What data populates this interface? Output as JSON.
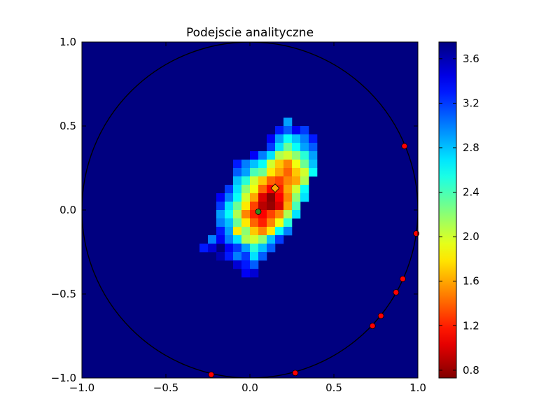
{
  "chart_data": {
    "type": "heatmap",
    "title": "Podejscie analityczne",
    "xlabel": "",
    "ylabel": "",
    "xlim": [
      -1.0,
      1.0
    ],
    "ylim": [
      -1.0,
      1.0
    ],
    "x_ticks": [
      "−1.0",
      "−0.5",
      "0.0",
      "0.5",
      "1.0"
    ],
    "x_tick_values": [
      -1.0,
      -0.5,
      0.0,
      0.5,
      1.0
    ],
    "y_ticks": [
      "−1.0",
      "−0.5",
      "0.0",
      "0.5",
      "1.0"
    ],
    "y_tick_values": [
      -1.0,
      -0.5,
      0.0,
      0.5,
      1.0
    ],
    "colorbar": {
      "colormap": "jet_r",
      "range": [
        0.73,
        3.75
      ],
      "ticks": [
        "0.8",
        "1.2",
        "1.6",
        "2.0",
        "2.4",
        "2.8",
        "3.2",
        "3.6"
      ],
      "tick_values": [
        0.8,
        1.2,
        1.6,
        2.0,
        2.4,
        2.8,
        3.2,
        3.6
      ]
    },
    "background_value": 3.75,
    "grid": {
      "bins": 40,
      "cell_size": 0.05,
      "cells": [
        {
          "x": 0.225,
          "y": 0.525,
          "v": 2.9
        },
        {
          "x": 0.175,
          "y": 0.475,
          "v": 3.3
        },
        {
          "x": 0.225,
          "y": 0.475,
          "v": 3.1
        },
        {
          "x": 0.275,
          "y": 0.475,
          "v": 3.4
        },
        {
          "x": 0.325,
          "y": 0.475,
          "v": 3.2
        },
        {
          "x": 0.125,
          "y": 0.425,
          "v": 3.4
        },
        {
          "x": 0.175,
          "y": 0.425,
          "v": 2.9
        },
        {
          "x": 0.225,
          "y": 0.425,
          "v": 2.6
        },
        {
          "x": 0.275,
          "y": 0.425,
          "v": 2.8
        },
        {
          "x": 0.325,
          "y": 0.425,
          "v": 3.0
        },
        {
          "x": 0.375,
          "y": 0.425,
          "v": 3.3
        },
        {
          "x": 0.125,
          "y": 0.375,
          "v": 3.2
        },
        {
          "x": 0.175,
          "y": 0.375,
          "v": 2.7
        },
        {
          "x": 0.225,
          "y": 0.375,
          "v": 2.3
        },
        {
          "x": 0.275,
          "y": 0.375,
          "v": 2.6
        },
        {
          "x": 0.325,
          "y": 0.375,
          "v": 2.9
        },
        {
          "x": 0.375,
          "y": 0.375,
          "v": 3.1
        },
        {
          "x": 0.025,
          "y": 0.325,
          "v": 3.4
        },
        {
          "x": 0.075,
          "y": 0.325,
          "v": 3.0
        },
        {
          "x": 0.125,
          "y": 0.325,
          "v": 2.7
        },
        {
          "x": 0.175,
          "y": 0.325,
          "v": 2.1
        },
        {
          "x": 0.225,
          "y": 0.325,
          "v": 2.0
        },
        {
          "x": 0.275,
          "y": 0.325,
          "v": 2.2
        },
        {
          "x": 0.325,
          "y": 0.325,
          "v": 2.5
        },
        {
          "x": 0.375,
          "y": 0.325,
          "v": 2.9
        },
        {
          "x": -0.075,
          "y": 0.275,
          "v": 3.3
        },
        {
          "x": -0.025,
          "y": 0.275,
          "v": 3.0
        },
        {
          "x": 0.025,
          "y": 0.275,
          "v": 2.8
        },
        {
          "x": 0.075,
          "y": 0.275,
          "v": 2.6
        },
        {
          "x": 0.125,
          "y": 0.275,
          "v": 2.0
        },
        {
          "x": 0.175,
          "y": 0.275,
          "v": 1.7
        },
        {
          "x": 0.225,
          "y": 0.275,
          "v": 1.5
        },
        {
          "x": 0.275,
          "y": 0.275,
          "v": 1.9
        },
        {
          "x": 0.325,
          "y": 0.275,
          "v": 2.3
        },
        {
          "x": 0.375,
          "y": 0.275,
          "v": 2.8
        },
        {
          "x": -0.075,
          "y": 0.225,
          "v": 3.1
        },
        {
          "x": -0.025,
          "y": 0.225,
          "v": 2.9
        },
        {
          "x": 0.025,
          "y": 0.225,
          "v": 2.4
        },
        {
          "x": 0.075,
          "y": 0.225,
          "v": 2.3
        },
        {
          "x": 0.125,
          "y": 0.225,
          "v": 1.8
        },
        {
          "x": 0.175,
          "y": 0.225,
          "v": 1.6
        },
        {
          "x": 0.225,
          "y": 0.225,
          "v": 1.4
        },
        {
          "x": 0.275,
          "y": 0.225,
          "v": 1.7
        },
        {
          "x": 0.325,
          "y": 0.225,
          "v": 2.0
        },
        {
          "x": 0.375,
          "y": 0.225,
          "v": 2.6
        },
        {
          "x": -0.075,
          "y": 0.175,
          "v": 2.8
        },
        {
          "x": -0.025,
          "y": 0.175,
          "v": 2.5
        },
        {
          "x": 0.025,
          "y": 0.175,
          "v": 2.0
        },
        {
          "x": 0.075,
          "y": 0.175,
          "v": 1.7
        },
        {
          "x": 0.125,
          "y": 0.175,
          "v": 1.4
        },
        {
          "x": 0.175,
          "y": 0.175,
          "v": 1.3
        },
        {
          "x": 0.225,
          "y": 0.175,
          "v": 1.5
        },
        {
          "x": 0.275,
          "y": 0.175,
          "v": 1.6
        },
        {
          "x": 0.325,
          "y": 0.175,
          "v": 2.1
        },
        {
          "x": -0.125,
          "y": 0.125,
          "v": 3.2
        },
        {
          "x": -0.075,
          "y": 0.125,
          "v": 2.7
        },
        {
          "x": -0.025,
          "y": 0.125,
          "v": 2.2
        },
        {
          "x": 0.025,
          "y": 0.125,
          "v": 1.9
        },
        {
          "x": 0.075,
          "y": 0.125,
          "v": 1.4
        },
        {
          "x": 0.125,
          "y": 0.125,
          "v": 1.1
        },
        {
          "x": 0.175,
          "y": 0.125,
          "v": 1.2
        },
        {
          "x": 0.225,
          "y": 0.125,
          "v": 1.6
        },
        {
          "x": 0.275,
          "y": 0.125,
          "v": 2.0
        },
        {
          "x": 0.325,
          "y": 0.125,
          "v": 2.6
        },
        {
          "x": -0.175,
          "y": 0.075,
          "v": 3.4
        },
        {
          "x": -0.125,
          "y": 0.075,
          "v": 3.0
        },
        {
          "x": -0.075,
          "y": 0.075,
          "v": 2.6
        },
        {
          "x": -0.025,
          "y": 0.075,
          "v": 2.0
        },
        {
          "x": 0.025,
          "y": 0.075,
          "v": 1.6
        },
        {
          "x": 0.075,
          "y": 0.075,
          "v": 1.0
        },
        {
          "x": 0.125,
          "y": 0.075,
          "v": 0.76
        },
        {
          "x": 0.175,
          "y": 0.075,
          "v": 1.1
        },
        {
          "x": 0.225,
          "y": 0.075,
          "v": 1.5
        },
        {
          "x": 0.275,
          "y": 0.075,
          "v": 2.2
        },
        {
          "x": 0.325,
          "y": 0.075,
          "v": 2.7
        },
        {
          "x": -0.175,
          "y": 0.025,
          "v": 3.2
        },
        {
          "x": -0.125,
          "y": 0.025,
          "v": 2.7
        },
        {
          "x": -0.075,
          "y": 0.025,
          "v": 2.3
        },
        {
          "x": -0.025,
          "y": 0.025,
          "v": 1.8
        },
        {
          "x": 0.025,
          "y": 0.025,
          "v": 1.3
        },
        {
          "x": 0.075,
          "y": 0.025,
          "v": 0.9
        },
        {
          "x": 0.125,
          "y": 0.025,
          "v": 0.8
        },
        {
          "x": 0.175,
          "y": 0.025,
          "v": 1.0
        },
        {
          "x": 0.225,
          "y": 0.025,
          "v": 1.6
        },
        {
          "x": 0.275,
          "y": 0.025,
          "v": 2.4
        },
        {
          "x": -0.175,
          "y": -0.025,
          "v": 2.9
        },
        {
          "x": -0.125,
          "y": -0.025,
          "v": 2.6
        },
        {
          "x": -0.075,
          "y": -0.025,
          "v": 2.1
        },
        {
          "x": -0.025,
          "y": -0.025,
          "v": 1.5
        },
        {
          "x": 0.025,
          "y": -0.025,
          "v": 1.2
        },
        {
          "x": 0.075,
          "y": -0.025,
          "v": 1.1
        },
        {
          "x": 0.125,
          "y": -0.025,
          "v": 1.3
        },
        {
          "x": 0.175,
          "y": -0.025,
          "v": 1.5
        },
        {
          "x": 0.225,
          "y": -0.025,
          "v": 2.1
        },
        {
          "x": 0.275,
          "y": -0.025,
          "v": 2.7
        },
        {
          "x": -0.175,
          "y": -0.075,
          "v": 3.0
        },
        {
          "x": -0.125,
          "y": -0.075,
          "v": 2.8
        },
        {
          "x": -0.075,
          "y": -0.075,
          "v": 2.3
        },
        {
          "x": -0.025,
          "y": -0.075,
          "v": 1.8
        },
        {
          "x": 0.025,
          "y": -0.075,
          "v": 1.4
        },
        {
          "x": 0.075,
          "y": -0.075,
          "v": 1.2
        },
        {
          "x": 0.125,
          "y": -0.075,
          "v": 1.5
        },
        {
          "x": 0.175,
          "y": -0.075,
          "v": 1.9
        },
        {
          "x": 0.225,
          "y": -0.075,
          "v": 2.5
        },
        {
          "x": -0.175,
          "y": -0.125,
          "v": 3.3
        },
        {
          "x": -0.125,
          "y": -0.125,
          "v": 2.9
        },
        {
          "x": -0.075,
          "y": -0.125,
          "v": 1.8
        },
        {
          "x": -0.025,
          "y": -0.125,
          "v": 2.2
        },
        {
          "x": 0.025,
          "y": -0.125,
          "v": 1.7
        },
        {
          "x": 0.075,
          "y": -0.125,
          "v": 1.5
        },
        {
          "x": 0.125,
          "y": -0.125,
          "v": 1.8
        },
        {
          "x": 0.175,
          "y": -0.125,
          "v": 2.6
        },
        {
          "x": 0.225,
          "y": -0.125,
          "v": 3.0
        },
        {
          "x": -0.225,
          "y": -0.175,
          "v": 3.0
        },
        {
          "x": -0.175,
          "y": -0.175,
          "v": 3.4
        },
        {
          "x": -0.125,
          "y": -0.175,
          "v": 3.0
        },
        {
          "x": -0.075,
          "y": -0.175,
          "v": 2.7
        },
        {
          "x": -0.025,
          "y": -0.175,
          "v": 2.1
        },
        {
          "x": 0.025,
          "y": -0.175,
          "v": 2.0
        },
        {
          "x": 0.075,
          "y": -0.175,
          "v": 2.2
        },
        {
          "x": 0.125,
          "y": -0.175,
          "v": 2.8
        },
        {
          "x": 0.175,
          "y": -0.175,
          "v": 3.2
        },
        {
          "x": -0.275,
          "y": -0.225,
          "v": 3.3
        },
        {
          "x": -0.225,
          "y": -0.225,
          "v": 3.5
        },
        {
          "x": -0.125,
          "y": -0.225,
          "v": 3.4
        },
        {
          "x": -0.075,
          "y": -0.225,
          "v": 3.2
        },
        {
          "x": -0.025,
          "y": -0.225,
          "v": 2.9
        },
        {
          "x": 0.025,
          "y": -0.225,
          "v": 2.5
        },
        {
          "x": 0.075,
          "y": -0.225,
          "v": 2.8
        },
        {
          "x": 0.125,
          "y": -0.225,
          "v": 3.1
        },
        {
          "x": -0.175,
          "y": -0.275,
          "v": 3.6
        },
        {
          "x": -0.125,
          "y": -0.275,
          "v": 3.3
        },
        {
          "x": -0.075,
          "y": -0.275,
          "v": 3.0
        },
        {
          "x": -0.025,
          "y": -0.275,
          "v": 3.2
        },
        {
          "x": 0.025,
          "y": -0.275,
          "v": 2.7
        },
        {
          "x": 0.075,
          "y": -0.275,
          "v": 3.1
        },
        {
          "x": -0.075,
          "y": -0.325,
          "v": 3.5
        },
        {
          "x": -0.025,
          "y": -0.325,
          "v": 3.3
        },
        {
          "x": 0.025,
          "y": -0.325,
          "v": 3.1
        },
        {
          "x": -0.025,
          "y": -0.375,
          "v": 3.4
        },
        {
          "x": 0.025,
          "y": -0.375,
          "v": 3.5
        }
      ]
    },
    "circle": {
      "center": [
        0.0,
        0.0
      ],
      "radius": 1.0,
      "color": "#000000"
    },
    "series": [
      {
        "marker": "circle",
        "color": "#ff0000",
        "points": [
          {
            "x": 0.92,
            "y": 0.38
          },
          {
            "x": 0.99,
            "y": -0.14
          },
          {
            "x": 0.91,
            "y": -0.41
          },
          {
            "x": 0.87,
            "y": -0.49
          },
          {
            "x": 0.78,
            "y": -0.63
          },
          {
            "x": 0.73,
            "y": -0.69
          },
          {
            "x": 0.27,
            "y": -0.97
          },
          {
            "x": -0.23,
            "y": -0.98
          }
        ]
      },
      {
        "marker": "circle",
        "color": "#2e8b22",
        "points": [
          {
            "x": 0.05,
            "y": -0.01
          }
        ]
      },
      {
        "marker": "diamond",
        "color": "#ffa500",
        "points": [
          {
            "x": 0.15,
            "y": 0.13
          }
        ]
      }
    ]
  }
}
